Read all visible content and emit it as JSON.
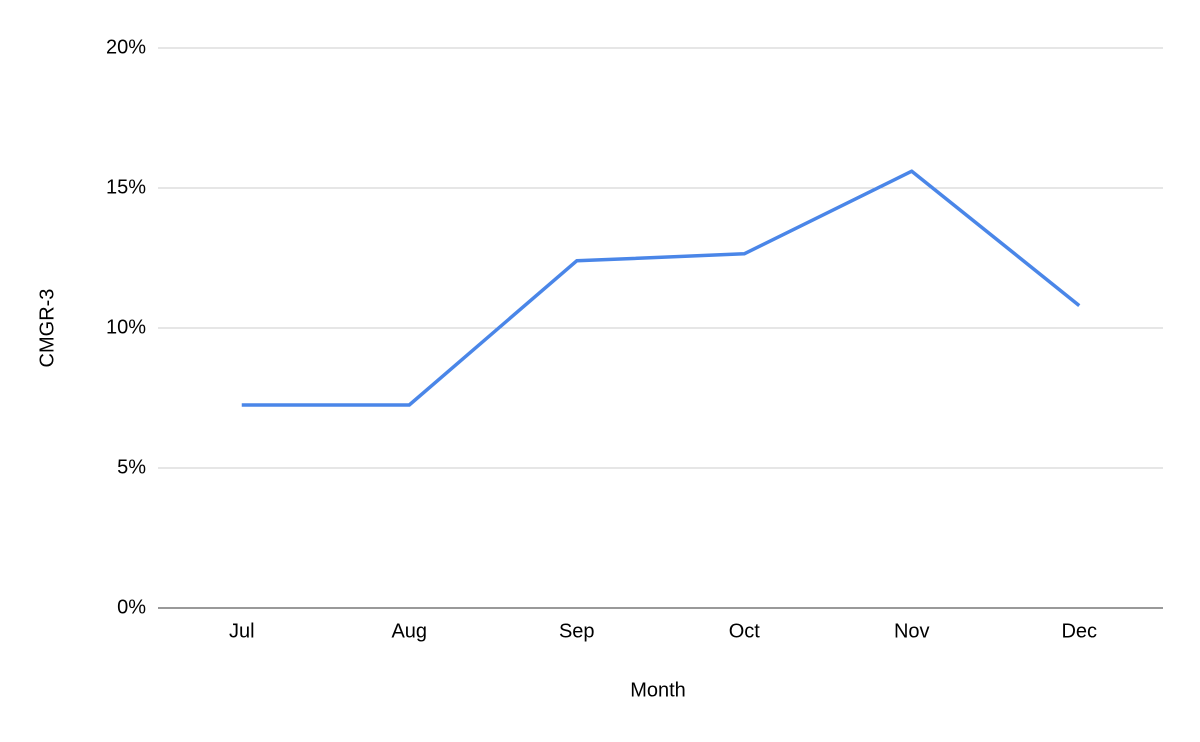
{
  "chart_data": {
    "type": "line",
    "x_label": "Month",
    "y_label": "CMGR-3",
    "categories": [
      "Jul",
      "Aug",
      "Sep",
      "Oct",
      "Nov",
      "Dec"
    ],
    "series": [
      {
        "name": "CMGR-3",
        "color": "#4a86e8",
        "values": [
          7.25,
          7.25,
          12.4,
          12.65,
          15.6,
          10.8
        ]
      }
    ],
    "ylim": [
      0,
      20
    ],
    "yticks": [
      {
        "value": 0,
        "label": "0%"
      },
      {
        "value": 5,
        "label": "5%"
      },
      {
        "value": 10,
        "label": "10%"
      },
      {
        "value": 15,
        "label": "15%"
      },
      {
        "value": 20,
        "label": "20%"
      }
    ],
    "grid": true,
    "legend": false
  }
}
